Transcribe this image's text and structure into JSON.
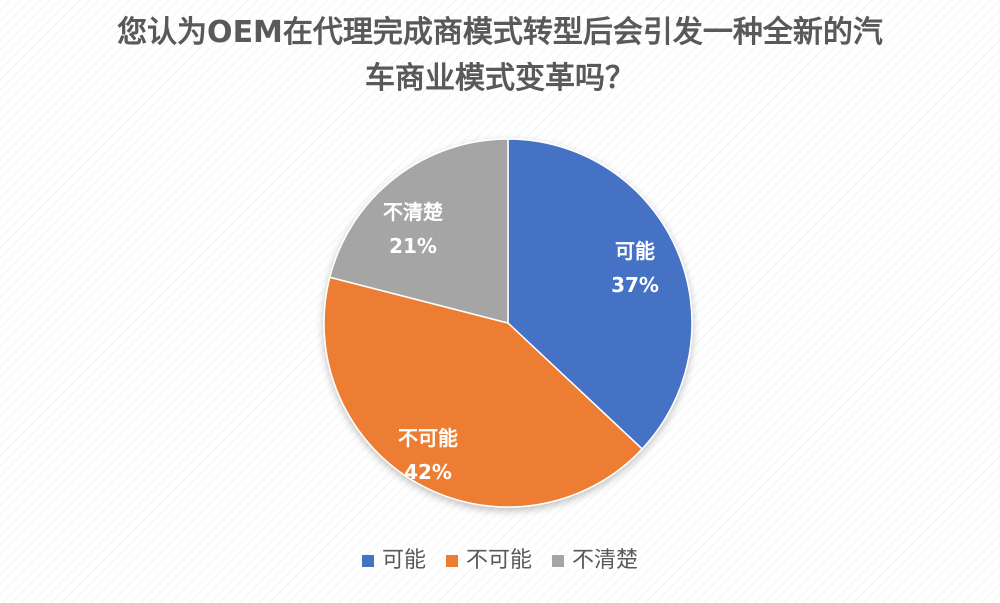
{
  "chart_data": {
    "type": "pie",
    "title_lines": [
      "您认为OEM在代理完成商模式转型后会引发一种全新的汽",
      "车商业模式变革吗？"
    ],
    "categories": [
      "可能",
      "不可能",
      "不清楚"
    ],
    "values": [
      37,
      42,
      21
    ],
    "value_labels": [
      "37%",
      "42%",
      "21%"
    ],
    "colors": [
      "#4472C4",
      "#ED7D31",
      "#A5A5A5"
    ],
    "start": "12 o'clock, clockwise",
    "legend_position": "bottom",
    "grid": false
  }
}
